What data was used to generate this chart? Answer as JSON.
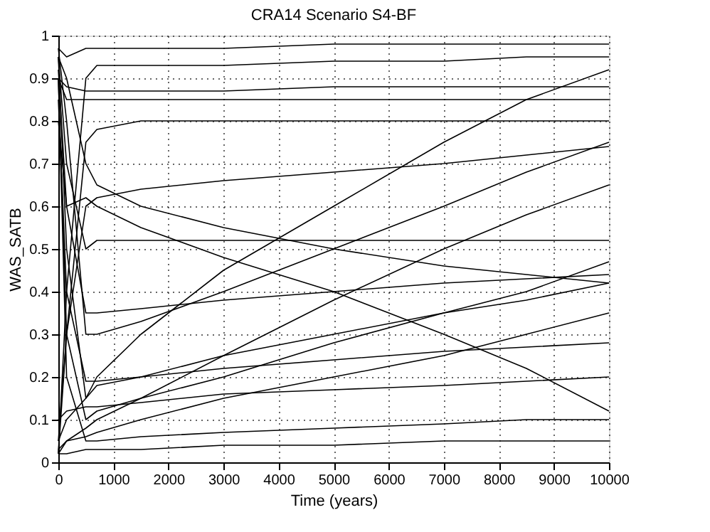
{
  "chart_data": {
    "type": "line",
    "title": "CRA14 Scenario S4-BF",
    "xlabel": "Time (years)",
    "ylabel": "WAS_SATB",
    "x": [
      0,
      150,
      500,
      700,
      1500,
      3000,
      5000,
      7000,
      8500,
      10000
    ],
    "xlim": [
      0,
      10000
    ],
    "xticks": [
      0,
      1000,
      2000,
      3000,
      4000,
      5000,
      6000,
      7000,
      8000,
      9000,
      10000
    ],
    "ylim": [
      0,
      1
    ],
    "yticks": [
      0,
      0.1,
      0.2,
      0.3,
      0.4,
      0.5,
      0.6,
      0.7,
      0.8,
      0.9,
      1
    ],
    "grid": true,
    "legend": false,
    "line_style": "solid",
    "marker": "none",
    "series": [
      {
        "color": "#000000",
        "values": [
          0.97,
          0.95,
          0.97,
          0.97,
          0.97,
          0.97,
          0.98,
          0.98,
          0.98,
          0.98
        ]
      },
      {
        "color": "#000000",
        "values": [
          0.9,
          0.85,
          0.85,
          0.85,
          0.85,
          0.85,
          0.85,
          0.85,
          0.85,
          0.85
        ]
      },
      {
        "color": "#000000",
        "values": [
          0.02,
          0.4,
          0.9,
          0.93,
          0.93,
          0.93,
          0.94,
          0.94,
          0.95,
          0.95
        ]
      },
      {
        "color": "#000000",
        "values": [
          0.95,
          0.5,
          0.15,
          0.18,
          0.2,
          0.25,
          0.3,
          0.35,
          0.38,
          0.42
        ]
      },
      {
        "color": "#000000",
        "values": [
          0.9,
          0.3,
          0.1,
          0.12,
          0.15,
          0.2,
          0.28,
          0.35,
          0.4,
          0.47
        ]
      },
      {
        "color": "#000000",
        "values": [
          0.85,
          0.4,
          0.19,
          0.19,
          0.2,
          0.22,
          0.24,
          0.26,
          0.27,
          0.28
        ]
      },
      {
        "color": "#000000",
        "values": [
          0.02,
          0.05,
          0.08,
          0.1,
          0.15,
          0.25,
          0.38,
          0.5,
          0.58,
          0.65
        ]
      },
      {
        "color": "#000000",
        "values": [
          0.03,
          0.05,
          0.06,
          0.07,
          0.1,
          0.15,
          0.2,
          0.25,
          0.3,
          0.35
        ]
      },
      {
        "color": "#000000",
        "values": [
          0.95,
          0.7,
          0.5,
          0.52,
          0.52,
          0.52,
          0.52,
          0.52,
          0.52,
          0.52
        ]
      },
      {
        "color": "#000000",
        "values": [
          0.02,
          0.3,
          0.75,
          0.78,
          0.8,
          0.8,
          0.8,
          0.8,
          0.8,
          0.8
        ]
      },
      {
        "color": "#000000",
        "values": [
          0.9,
          0.2,
          0.05,
          0.05,
          0.06,
          0.07,
          0.08,
          0.09,
          0.1,
          0.1
        ]
      },
      {
        "color": "#000000",
        "values": [
          0.8,
          0.6,
          0.62,
          0.6,
          0.55,
          0.48,
          0.4,
          0.3,
          0.22,
          0.12
        ]
      },
      {
        "color": "#000000",
        "values": [
          0.05,
          0.1,
          0.15,
          0.2,
          0.3,
          0.45,
          0.6,
          0.75,
          0.85,
          0.92
        ]
      },
      {
        "color": "#000000",
        "values": [
          0.95,
          0.9,
          0.7,
          0.65,
          0.6,
          0.55,
          0.5,
          0.46,
          0.44,
          0.42
        ]
      },
      {
        "color": "#000000",
        "values": [
          0.1,
          0.12,
          0.13,
          0.13,
          0.14,
          0.16,
          0.17,
          0.18,
          0.19,
          0.2
        ]
      },
      {
        "color": "#000000",
        "values": [
          0.97,
          0.8,
          0.3,
          0.3,
          0.33,
          0.4,
          0.5,
          0.6,
          0.68,
          0.75
        ]
      },
      {
        "color": "#000000",
        "values": [
          0.02,
          0.02,
          0.03,
          0.03,
          0.03,
          0.04,
          0.04,
          0.05,
          0.05,
          0.05
        ]
      },
      {
        "color": "#000000",
        "values": [
          0.92,
          0.6,
          0.35,
          0.35,
          0.36,
          0.38,
          0.4,
          0.42,
          0.43,
          0.44
        ]
      },
      {
        "color": "#000000",
        "values": [
          0.9,
          0.88,
          0.87,
          0.87,
          0.87,
          0.87,
          0.88,
          0.88,
          0.88,
          0.88
        ]
      },
      {
        "color": "#000000",
        "values": [
          0.05,
          0.3,
          0.6,
          0.62,
          0.64,
          0.66,
          0.68,
          0.7,
          0.72,
          0.74
        ]
      }
    ]
  }
}
